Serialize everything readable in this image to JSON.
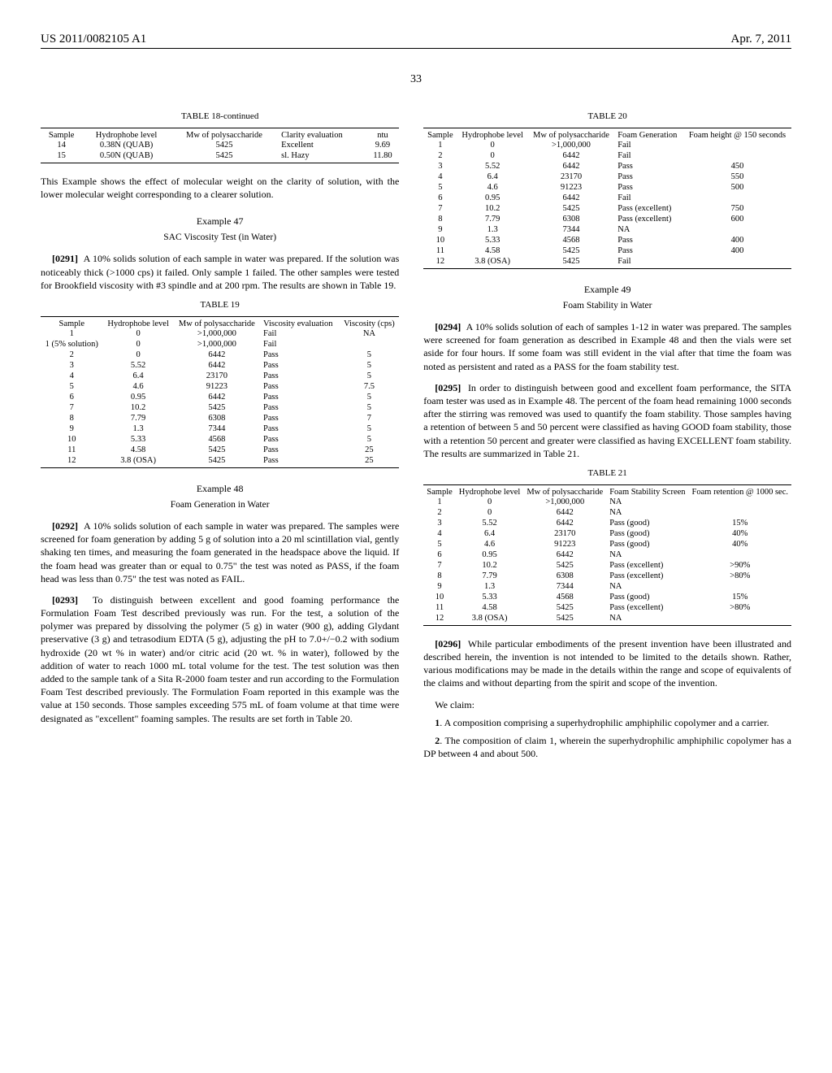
{
  "header": {
    "left": "US 2011/0082105 A1",
    "right": "Apr. 7, 2011"
  },
  "page_number": "33",
  "table18": {
    "title": "TABLE 18-continued",
    "columns": [
      "Sample",
      "Hydrophobe level",
      "Mw of polysaccharide",
      "Clarity evaluation",
      "ntu"
    ],
    "rows": [
      [
        "14",
        "0.38N (QUAB)",
        "5425",
        "Excellent",
        "9.69"
      ],
      [
        "15",
        "0.50N (QUAB)",
        "5425",
        "sl. Hazy",
        "11.80"
      ]
    ]
  },
  "text_after_18": "This Example shows the effect of molecular weight on the clarity of solution, with the lower molecular weight corresponding to a clearer solution.",
  "example47": {
    "title": "Example 47",
    "subtitle": "SAC Viscosity Test (in Water)",
    "para_num": "[0291]",
    "para": "A 10% solids solution of each sample in water was prepared. If the solution was noticeably thick (>1000 cps) it failed. Only sample 1 failed. The other samples were tested for Brookfield viscosity with #3 spindle and at 200 rpm. The results are shown in Table 19."
  },
  "table19": {
    "title": "TABLE 19",
    "columns": [
      "Sample",
      "Hydrophobe level",
      "Mw of polysaccharide",
      "Viscosity evaluation",
      "Viscosity (cps)"
    ],
    "rows": [
      [
        "1",
        "0",
        ">1,000,000",
        "Fail",
        "NA"
      ],
      [
        "1 (5% solution)",
        "0",
        ">1,000,000",
        "Fail",
        ""
      ],
      [
        "2",
        "0",
        "6442",
        "Pass",
        "5"
      ],
      [
        "3",
        "5.52",
        "6442",
        "Pass",
        "5"
      ],
      [
        "4",
        "6.4",
        "23170",
        "Pass",
        "5"
      ],
      [
        "5",
        "4.6",
        "91223",
        "Pass",
        "7.5"
      ],
      [
        "6",
        "0.95",
        "6442",
        "Pass",
        "5"
      ],
      [
        "7",
        "10.2",
        "5425",
        "Pass",
        "5"
      ],
      [
        "8",
        "7.79",
        "6308",
        "Pass",
        "7"
      ],
      [
        "9",
        "1.3",
        "7344",
        "Pass",
        "5"
      ],
      [
        "10",
        "5.33",
        "4568",
        "Pass",
        "5"
      ],
      [
        "11",
        "4.58",
        "5425",
        "Pass",
        "25"
      ],
      [
        "12",
        "3.8 (OSA)",
        "5425",
        "Pass",
        "25"
      ]
    ]
  },
  "example48": {
    "title": "Example 48",
    "subtitle": "Foam Generation in Water",
    "para1_num": "[0292]",
    "para1": "A 10% solids solution of each sample in water was prepared. The samples were screened for foam generation by adding 5 g of solution into a 20 ml scintillation vial, gently shaking ten times, and measuring the foam generated in the headspace above the liquid. If the foam head was greater than or equal to 0.75\" the test was noted as PASS, if the foam head was less than 0.75\" the test was noted as FAIL.",
    "para2_num": "[0293]",
    "para2": "To distinguish between excellent and good foaming performance the Formulation Foam Test described previously was run. For the test, a solution of the polymer was prepared by dissolving the polymer (5 g) in water (900 g), adding Glydant preservative (3 g) and tetrasodium EDTA (5 g), adjusting the pH to 7.0+/−0.2 with sodium hydroxide (20 wt % in water) and/or citric acid (20 wt. % in water), followed by the addition of water to reach 1000 mL total volume for the test. The test solution was then added to the sample tank of a Sita R-2000 foam tester and run according to the Formulation Foam Test described previously. The Formulation Foam reported in this example was the value at 150 seconds. Those samples exceeding 575 mL of foam volume at that time were designated as \"excellent\" foaming samples. The results are set forth in Table 20."
  },
  "table20": {
    "title": "TABLE 20",
    "columns": [
      "Sample",
      "Hydrophobe level",
      "Mw of polysaccharide",
      "Foam Generation",
      "Foam height @ 150 seconds"
    ],
    "rows": [
      [
        "1",
        "0",
        ">1,000,000",
        "Fail",
        ""
      ],
      [
        "2",
        "0",
        "6442",
        "Fail",
        ""
      ],
      [
        "3",
        "5.52",
        "6442",
        "Pass",
        "450"
      ],
      [
        "4",
        "6.4",
        "23170",
        "Pass",
        "550"
      ],
      [
        "5",
        "4.6",
        "91223",
        "Pass",
        "500"
      ],
      [
        "6",
        "0.95",
        "6442",
        "Fail",
        ""
      ],
      [
        "7",
        "10.2",
        "5425",
        "Pass (excellent)",
        "750"
      ],
      [
        "8",
        "7.79",
        "6308",
        "Pass (excellent)",
        "600"
      ],
      [
        "9",
        "1.3",
        "7344",
        "NA",
        ""
      ],
      [
        "10",
        "5.33",
        "4568",
        "Pass",
        "400"
      ],
      [
        "11",
        "4.58",
        "5425",
        "Pass",
        "400"
      ],
      [
        "12",
        "3.8 (OSA)",
        "5425",
        "Fail",
        ""
      ]
    ]
  },
  "example49": {
    "title": "Example 49",
    "subtitle": "Foam Stability in Water",
    "para1_num": "[0294]",
    "para1": "A 10% solids solution of each of samples 1-12 in water was prepared. The samples were screened for foam generation as described in Example 48 and then the vials were set aside for four hours. If some foam was still evident in the vial after that time the foam was noted as persistent and rated as a PASS for the foam stability test.",
    "para2_num": "[0295]",
    "para2": "In order to distinguish between good and excellent foam performance, the SITA foam tester was used as in Example 48. The percent of the foam head remaining 1000 seconds after the stirring was removed was used to quantify the foam stability. Those samples having a retention of between 5 and 50 percent were classified as having GOOD foam stability, those with a retention 50 percent and greater were classified as having EXCELLENT foam stability. The results are summarized in Table 21."
  },
  "table21": {
    "title": "TABLE 21",
    "columns": [
      "Sample",
      "Hydrophobe level",
      "Mw of polysaccharide",
      "Foam Stability Screen",
      "Foam retention @ 1000 sec."
    ],
    "rows": [
      [
        "1",
        "0",
        ">1,000,000",
        "NA",
        ""
      ],
      [
        "2",
        "0",
        "6442",
        "NA",
        ""
      ],
      [
        "3",
        "5.52",
        "6442",
        "Pass (good)",
        "15%"
      ],
      [
        "4",
        "6.4",
        "23170",
        "Pass (good)",
        "40%"
      ],
      [
        "5",
        "4.6",
        "91223",
        "Pass (good)",
        "40%"
      ],
      [
        "6",
        "0.95",
        "6442",
        "NA",
        ""
      ],
      [
        "7",
        "10.2",
        "5425",
        "Pass (excellent)",
        ">90%"
      ],
      [
        "8",
        "7.79",
        "6308",
        "Pass (excellent)",
        ">80%"
      ],
      [
        "9",
        "1.3",
        "7344",
        "NA",
        ""
      ],
      [
        "10",
        "5.33",
        "4568",
        "Pass (good)",
        "15%"
      ],
      [
        "11",
        "4.58",
        "5425",
        "Pass (excellent)",
        ">80%"
      ],
      [
        "12",
        "3.8 (OSA)",
        "5425",
        "NA",
        ""
      ]
    ]
  },
  "para296_num": "[0296]",
  "para296": "While particular embodiments of the present invention have been illustrated and described herein, the invention is not intended to be limited to the details shown. Rather, various modifications may be made in the details within the range and scope of equivalents of the claims and without departing from the spirit and scope of the invention.",
  "claims": {
    "intro": "We claim:",
    "c1_num": "1",
    "c1": ". A composition comprising a superhydrophilic amphiphilic copolymer and a carrier.",
    "c2_num": "2",
    "c2": ". The composition of claim 1, wherein the superhydrophilic amphiphilic copolymer has a DP between 4 and about 500."
  }
}
